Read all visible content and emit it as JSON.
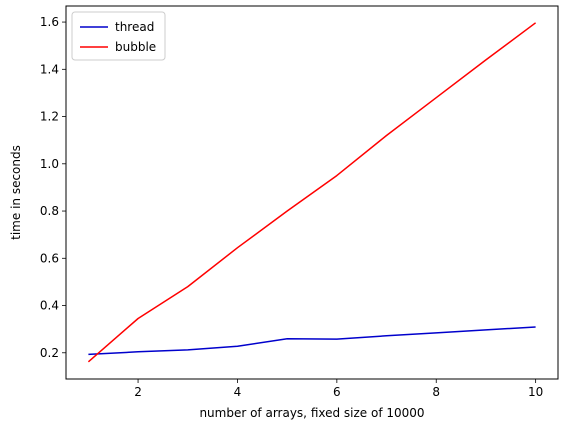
{
  "chart_data": {
    "type": "line",
    "xlabel": "number of arrays, fixed size of 10000",
    "ylabel": "time in seconds",
    "xlim": [
      0.55,
      10.45
    ],
    "ylim": [
      0.089,
      1.668
    ],
    "xticks": [
      2,
      4,
      6,
      8,
      10
    ],
    "yticks": [
      0.2,
      0.4,
      0.6,
      0.8,
      1.0,
      1.2,
      1.4,
      1.6
    ],
    "grid": false,
    "legend_position": "top-left",
    "series": [
      {
        "name": "thread",
        "color": "#0000cc",
        "x": [
          1,
          2,
          3,
          4,
          5,
          6,
          7,
          8,
          9,
          10
        ],
        "y": [
          0.193,
          0.204,
          0.212,
          0.228,
          0.259,
          0.258,
          0.272,
          0.284,
          0.297,
          0.309
        ]
      },
      {
        "name": "bubble",
        "color": "#ff0000",
        "x": [
          1,
          2,
          3,
          4,
          5,
          6,
          7,
          8,
          9,
          10
        ],
        "y": [
          0.162,
          0.345,
          0.48,
          0.645,
          0.8,
          0.95,
          1.12,
          1.28,
          1.44,
          1.597
        ]
      }
    ]
  }
}
